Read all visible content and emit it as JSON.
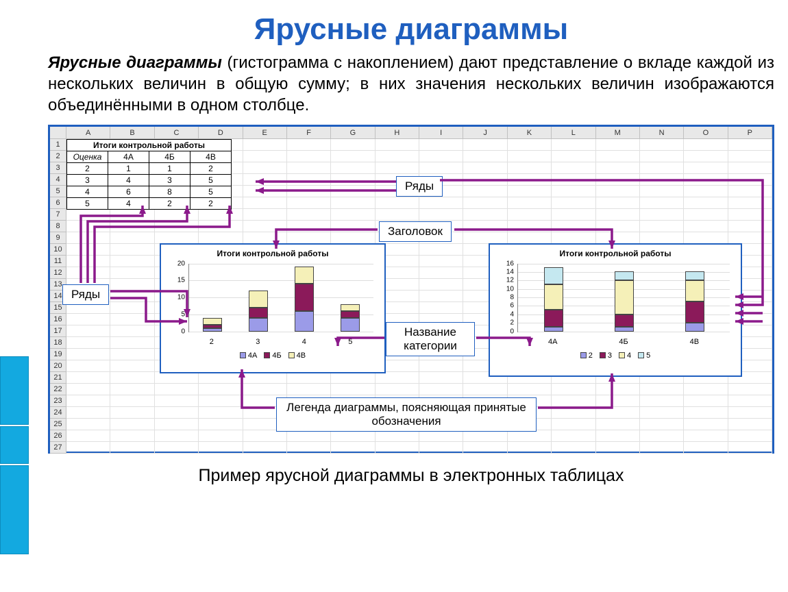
{
  "title": "Ярусные диаграммы",
  "description_emph": "Ярусные диаграммы",
  "description_rest": " (гистограмма с накоплением) дают представление о вкладе каждой из нескольких величин в общую сумму; в них значения нескольких величин изображаются объединёнными в одном столбце.",
  "caption": "Пример ярусной диаграммы в электронных таблицах",
  "spreadsheet": {
    "columns": [
      "A",
      "B",
      "C",
      "D",
      "E",
      "F",
      "G",
      "H",
      "I",
      "J",
      "K",
      "L",
      "M",
      "N",
      "O",
      "P"
    ],
    "rows_count": 27,
    "data_title": "Итоги контрольной работы",
    "col_headers": [
      "Оценка",
      "4А",
      "4Б",
      "4В"
    ],
    "data_rows": [
      [
        "2",
        "1",
        "1",
        "2"
      ],
      [
        "3",
        "4",
        "3",
        "5"
      ],
      [
        "4",
        "6",
        "8",
        "5"
      ],
      [
        "5",
        "4",
        "2",
        "2"
      ]
    ]
  },
  "callouts": {
    "rows_right": "Ряды",
    "rows_left": "Ряды",
    "title_cb": "Заголовок",
    "category": "Название категории",
    "legend_cb": "Легенда диаграммы, поясняющая принятые обозначения"
  },
  "chart_left": {
    "title": "Итоги контрольной работы",
    "y_max": 20,
    "y_ticks": [
      0,
      5,
      10,
      15,
      20
    ],
    "x_labels": [
      "2",
      "3",
      "4",
      "5"
    ],
    "legend_labels": [
      "4А",
      "4Б",
      "4В"
    ],
    "series_colors": [
      "#9b9be8",
      "#8b1a5a",
      "#f5f0b8"
    ],
    "stacks": [
      [
        1,
        1,
        2
      ],
      [
        4,
        3,
        5
      ],
      [
        6,
        8,
        5
      ],
      [
        4,
        2,
        2
      ]
    ]
  },
  "chart_right": {
    "title": "Итоги контрольной работы",
    "y_max": 16,
    "y_ticks": [
      0,
      2,
      4,
      6,
      8,
      10,
      12,
      14,
      16
    ],
    "x_labels": [
      "4А",
      "4Б",
      "4В"
    ],
    "legend_labels": [
      "2",
      "3",
      "4",
      "5"
    ],
    "series_colors": [
      "#9b9be8",
      "#8b1a5a",
      "#f5f0b8",
      "#c5e8f0"
    ],
    "stacks": [
      [
        1,
        4,
        6,
        4
      ],
      [
        1,
        3,
        8,
        2
      ],
      [
        2,
        5,
        5,
        2
      ]
    ]
  },
  "arrow_color": "#8b1a8b",
  "callout_border": "#1f5fbf"
}
